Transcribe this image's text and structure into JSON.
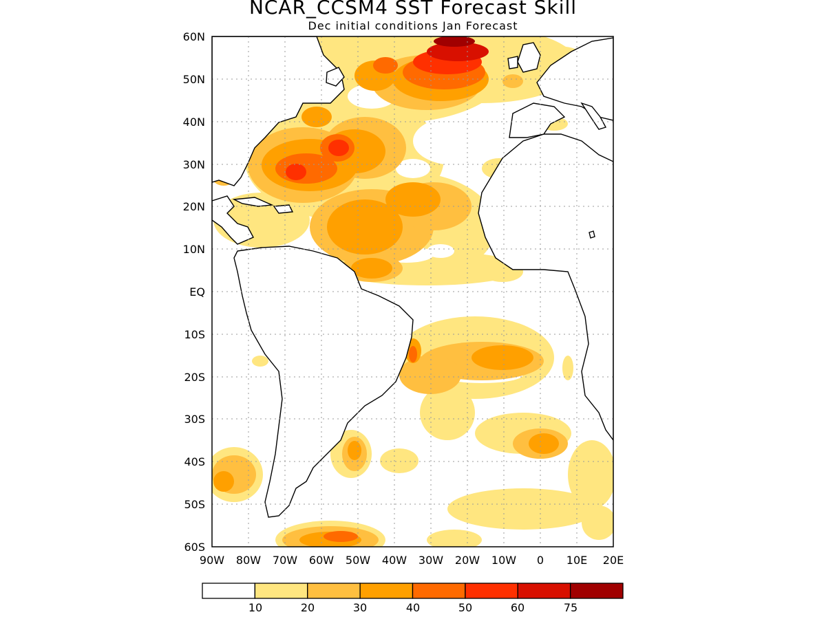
{
  "title": "NCAR_CCSM4 SST Forecast Skill",
  "subtitle": "Dec initial conditions  Jan Forecast",
  "lat_labels": [
    "60N",
    "50N",
    "40N",
    "30N",
    "20N",
    "10N",
    "EQ",
    "10S",
    "20S",
    "30S",
    "40S",
    "50S",
    "60S"
  ],
  "lon_labels": [
    "90W",
    "80W",
    "70W",
    "60W",
    "50W",
    "40W",
    "30W",
    "20W",
    "10W",
    "0",
    "10E",
    "20E"
  ],
  "colorbar": {
    "colors": [
      "#ffffff",
      "#ffe680",
      "#ffbf40",
      "#ffa000",
      "#ff6a00",
      "#ff3000",
      "#d81000",
      "#a00000"
    ],
    "labels": [
      "10",
      "20",
      "30",
      "40",
      "50",
      "60",
      "75"
    ]
  },
  "colors": {
    "land_outline": "#000000",
    "grid": "#9a9a9a",
    "ocean": "#ffffff"
  }
}
